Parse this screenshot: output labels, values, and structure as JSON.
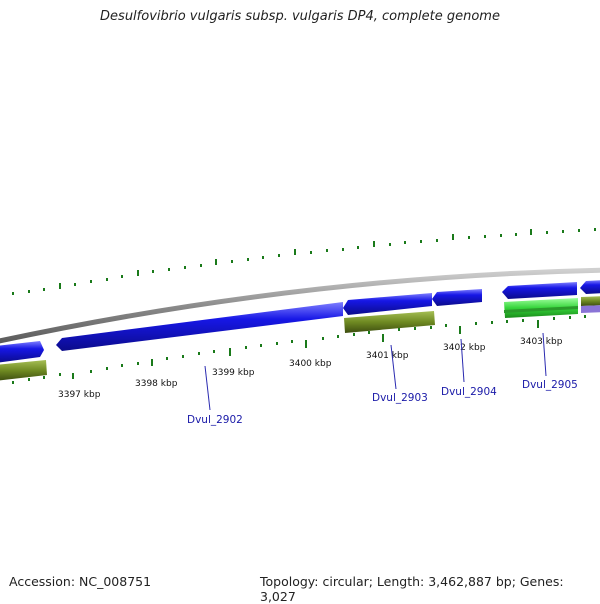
{
  "title": "Desulfovibrio vulgaris subsp. vulgaris DP4, complete genome",
  "footer": {
    "accession": "Accession: NC_008751",
    "topology": "Topology: circular; Length: 3,462,887 bp; Genes: 3,027"
  },
  "colors": {
    "backbone": "#8a8a8a",
    "cds_forward": "#1717e6",
    "gene_olive": "#6f8a22",
    "gene_light_green": "#35d43a",
    "gene_purple": "#8a74d6",
    "tick_green": "#1a7a1a",
    "gene_label": "#1a1aa8"
  },
  "ticks": [
    {
      "label": "3397 kbp"
    },
    {
      "label": "3398 kbp"
    },
    {
      "label": "3399 kbp"
    },
    {
      "label": "3400 kbp"
    },
    {
      "label": "3401 kbp"
    },
    {
      "label": "3402 kbp"
    },
    {
      "label": "3403 kbp"
    }
  ],
  "genes": [
    {
      "label": "Dvul_2902"
    },
    {
      "label": "Dvul_2903"
    },
    {
      "label": "Dvul_2904"
    },
    {
      "label": "Dvul_2905"
    }
  ]
}
